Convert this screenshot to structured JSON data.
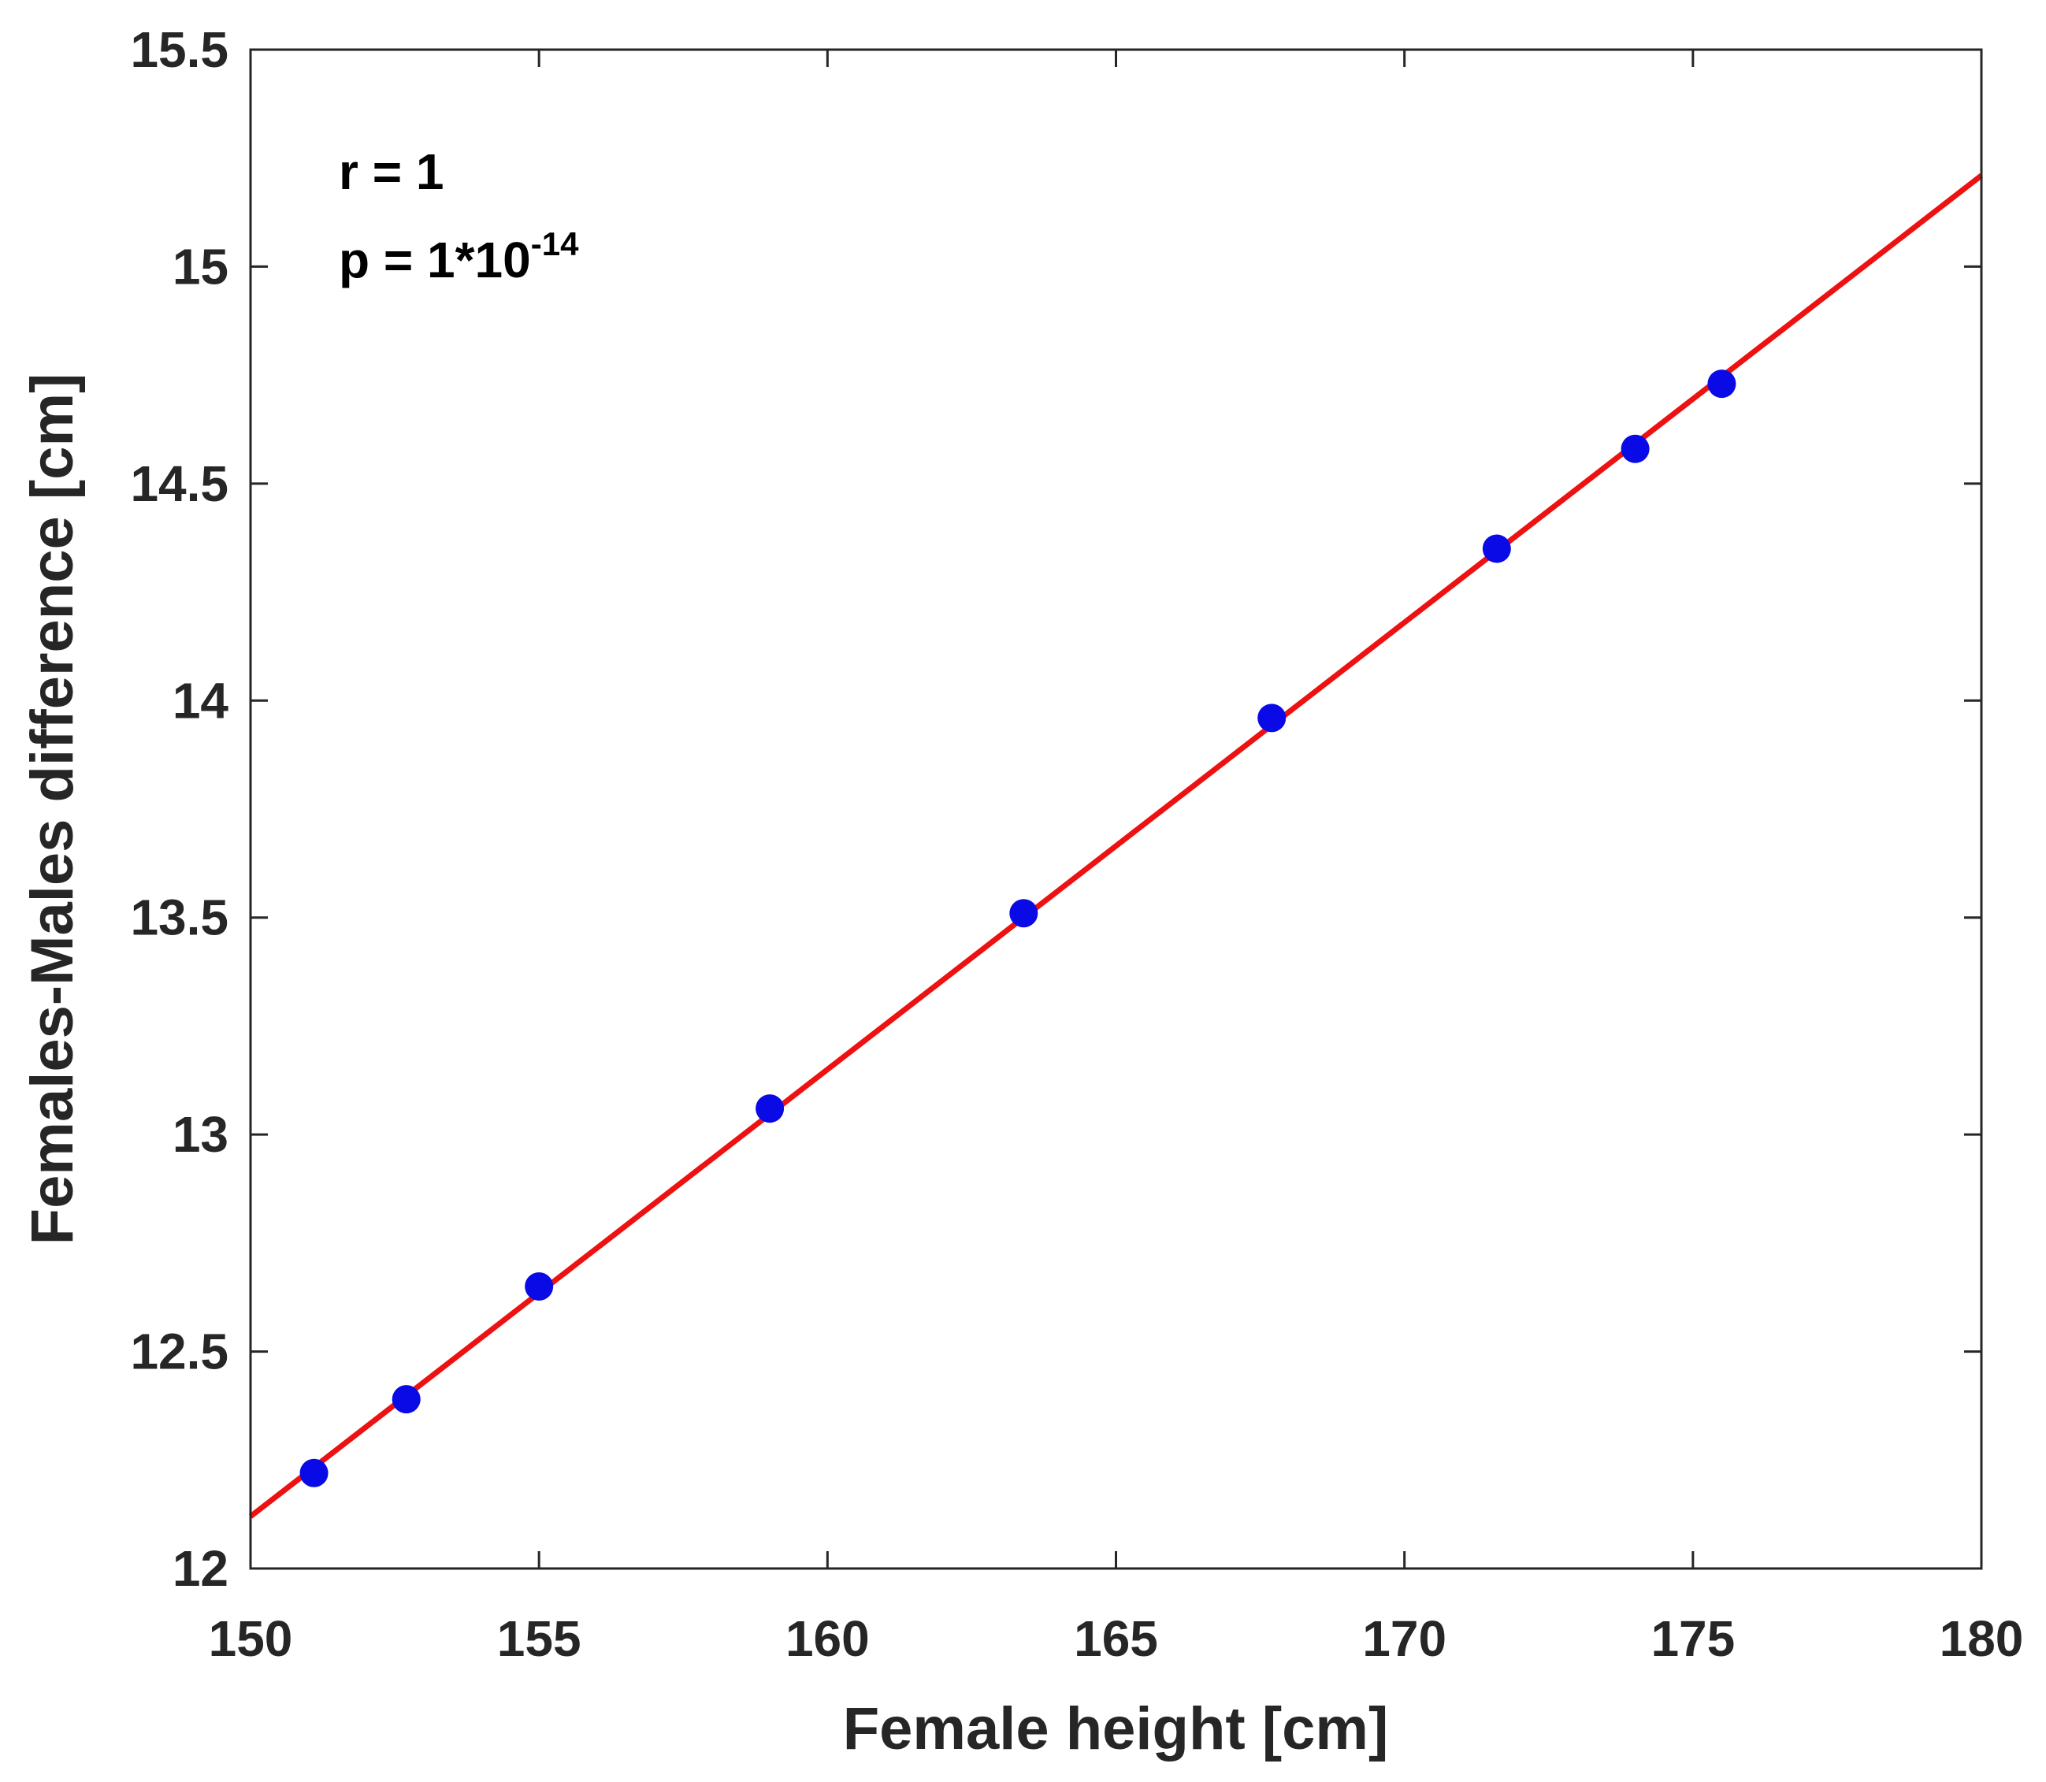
{
  "chart_data": {
    "type": "scatter",
    "xlabel": "Female height [cm]",
    "ylabel": "Females-Males difference [cm]",
    "xlim": [
      150,
      180
    ],
    "ylim": [
      12,
      15.5
    ],
    "xticks": [
      150,
      155,
      160,
      165,
      170,
      175,
      180
    ],
    "yticks": [
      12,
      12.5,
      13,
      13.5,
      14,
      14.5,
      15,
      15.5
    ],
    "xtick_labels": [
      "150",
      "155",
      "160",
      "165",
      "170",
      "175",
      "180"
    ],
    "ytick_labels": [
      "12",
      "12.5",
      "13",
      "13.5",
      "14",
      "14.5",
      "15",
      "15.5"
    ],
    "grid": false,
    "points": {
      "x": [
        151.1,
        152.7,
        155.0,
        159.0,
        163.4,
        167.7,
        171.6,
        174.0,
        175.5
      ],
      "y": [
        12.22,
        12.39,
        12.65,
        13.06,
        13.51,
        13.96,
        14.35,
        14.58,
        14.73
      ],
      "color": "#0a0ae6"
    },
    "fit_line": {
      "x": [
        150,
        180
      ],
      "y": [
        12.12,
        15.21
      ],
      "color": "#ee1111"
    },
    "annotations": {
      "r_text": "r = 1",
      "p_prefix": "p = 1*10",
      "p_exponent": "-14"
    }
  }
}
